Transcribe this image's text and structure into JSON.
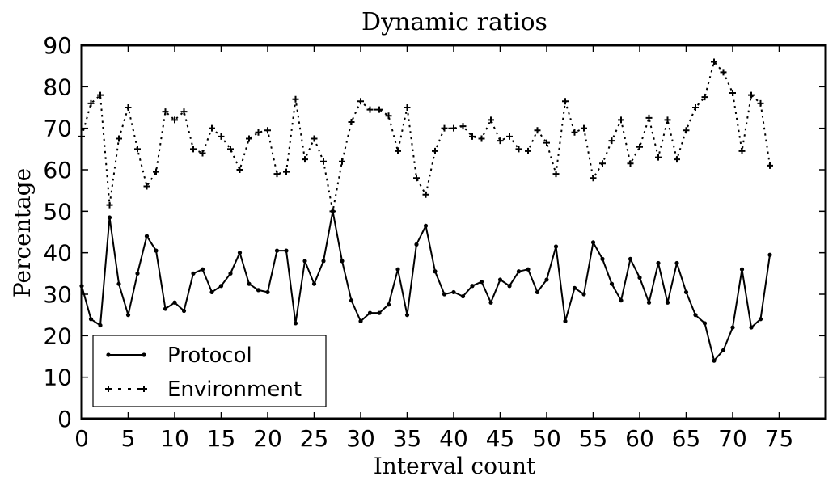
{
  "chart_data": {
    "type": "line",
    "title": "Dynamic ratios",
    "xlabel": "Interval count",
    "ylabel": "Percentage",
    "xlim": [
      0,
      80
    ],
    "ylim": [
      0,
      90
    ],
    "xticks": [
      0,
      5,
      10,
      15,
      20,
      25,
      30,
      35,
      40,
      45,
      50,
      55,
      60,
      65,
      70,
      75
    ],
    "yticks": [
      0,
      10,
      20,
      30,
      40,
      50,
      60,
      70,
      80,
      90
    ],
    "grid": false,
    "legend_position": "lower-left",
    "x": [
      0,
      1,
      2,
      3,
      4,
      5,
      6,
      7,
      8,
      9,
      10,
      11,
      12,
      13,
      14,
      15,
      16,
      17,
      18,
      19,
      20,
      21,
      22,
      23,
      24,
      25,
      26,
      27,
      28,
      29,
      30,
      31,
      32,
      33,
      34,
      35,
      36,
      37,
      38,
      39,
      40,
      41,
      42,
      43,
      44,
      45,
      46,
      47,
      48,
      49,
      50,
      51,
      52,
      53,
      54,
      55,
      56,
      57,
      58,
      59,
      60,
      61,
      62,
      63,
      64,
      65,
      66,
      67,
      68,
      69,
      70,
      71,
      72,
      73,
      74
    ],
    "series": [
      {
        "name": "Protocol",
        "style": "solid",
        "marker": "dot",
        "values": [
          32,
          24,
          22.5,
          48.5,
          32.5,
          25,
          35,
          44,
          40.5,
          26.5,
          28,
          26,
          35,
          36,
          30.5,
          32,
          35,
          40,
          32.5,
          31,
          30.5,
          40.5,
          40.5,
          23,
          38,
          32.5,
          38,
          50,
          38,
          28.5,
          23.5,
          25.5,
          25.5,
          27.5,
          36,
          25,
          42,
          46.5,
          35.5,
          30,
          30.5,
          29.5,
          32,
          33,
          28,
          33.5,
          32,
          35.5,
          36,
          30.5,
          33.5,
          41.5,
          23.5,
          31.5,
          30,
          42.5,
          38.5,
          32.5,
          28.5,
          38.5,
          34,
          28,
          37.5,
          28,
          37.5,
          30.5,
          25,
          23,
          14,
          16.5,
          22,
          36,
          22,
          24,
          39.5
        ]
      },
      {
        "name": "Environment",
        "style": "dotted",
        "marker": "plus",
        "values": [
          68,
          76,
          78,
          51.5,
          67.5,
          75,
          65,
          56,
          59.5,
          74,
          72,
          74,
          65,
          64,
          70,
          68,
          65,
          60,
          67.5,
          69,
          69.5,
          59,
          59.5,
          77,
          62.5,
          67.5,
          62,
          50,
          62,
          71.5,
          76.5,
          74.5,
          74.5,
          73,
          64.5,
          75,
          58,
          54,
          64.5,
          70,
          70,
          70.5,
          68,
          67.5,
          72,
          67,
          68,
          65,
          64.5,
          69.5,
          66.5,
          59,
          76.5,
          69,
          70,
          58,
          61.5,
          67,
          72,
          61.5,
          65.5,
          72.5,
          63,
          72,
          62.5,
          69.5,
          75,
          77.5,
          86,
          83.5,
          78.5,
          64.5,
          78,
          76,
          61
        ]
      }
    ]
  }
}
